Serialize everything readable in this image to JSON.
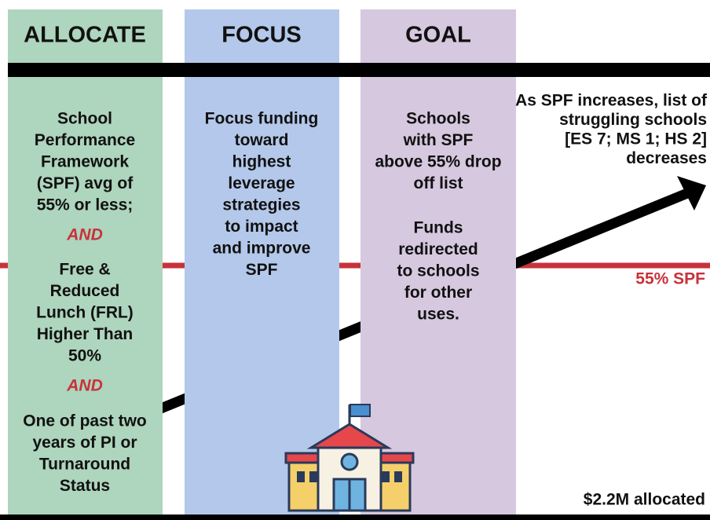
{
  "columns": [
    {
      "title": "ALLOCATE",
      "criteria": [
        [
          "School",
          "Performance",
          "Framework",
          "(SPF) avg of",
          "55% or less;"
        ],
        [
          "Free &",
          "Reduced",
          "Lunch (FRL)",
          "Higher Than",
          "50%"
        ],
        [
          "One of past two",
          "years of PI or",
          "Turnaround",
          "Status"
        ]
      ],
      "connectors": [
        "AND",
        "AND"
      ]
    },
    {
      "title": "FOCUS",
      "paragraphs": [
        [
          "Focus funding",
          "toward",
          "highest",
          "leverage",
          "strategies",
          "to impact",
          "and improve",
          "SPF"
        ]
      ]
    },
    {
      "title": "GOAL",
      "paragraphs": [
        [
          "Schools",
          "with SPF",
          "above 55% drop",
          "off list"
        ],
        [
          "Funds",
          "redirected",
          "to schools",
          "for other",
          "uses."
        ]
      ]
    }
  ],
  "outcome": [
    "As SPF increases, list of",
    "struggling schools",
    "[ES 7; MS 1; HS 2]",
    "decreases"
  ],
  "threshold_label": "55% SPF",
  "allocation": "$2.2M allocated"
}
